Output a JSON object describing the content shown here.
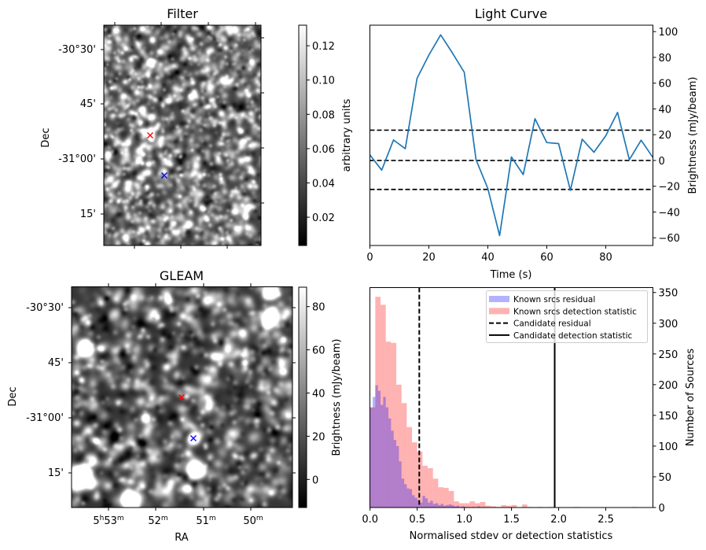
{
  "figure": {
    "panels": {
      "filter": {
        "title": "Filter",
        "ylabel": "Dec",
        "dec_ticks": [
          "-30°30'",
          "45'",
          "-31°00'",
          "15'"
        ],
        "colorbar": {
          "label": "arbitrary units",
          "ticks": [
            "0.02",
            "0.04",
            "0.06",
            "0.08",
            "0.10",
            "0.12"
          ],
          "tick_values": [
            0.02,
            0.04,
            0.06,
            0.08,
            0.1,
            0.12
          ],
          "range": [
            0.0035,
            0.132
          ],
          "colormap": "gray"
        }
      },
      "gleam": {
        "title": "GLEAM",
        "xlabel": "RA",
        "ylabel": "Dec",
        "dec_ticks": [
          "-30°30'",
          "45'",
          "-31°00'",
          "15'"
        ],
        "ra_ticks": [
          {
            "main": "5",
            "sup1": "h",
            "mid": "53",
            "sup2": "m"
          },
          {
            "main": "",
            "sup1": "",
            "mid": "52",
            "sup2": "m"
          },
          {
            "main": "",
            "sup1": "",
            "mid": "51",
            "sup2": "m"
          },
          {
            "main": "",
            "sup1": "",
            "mid": "50",
            "sup2": "m"
          }
        ],
        "colorbar": {
          "label": "Brightness (mJy/beam)",
          "ticks": [
            "0",
            "20",
            "40",
            "60",
            "80"
          ],
          "tick_values": [
            0,
            20,
            40,
            60,
            80
          ],
          "range": [
            -13,
            89
          ],
          "colormap": "gray"
        }
      }
    },
    "markers": {
      "candidate": {
        "symbol": "x",
        "color": "#ff0000"
      },
      "known_source": {
        "symbol": "x",
        "color": "#0000ff"
      }
    }
  },
  "chart_data": [
    {
      "type": "line",
      "title": "Light Curve",
      "xlabel": "Time (s)",
      "ylabel": "Brightness (mJy/beam)",
      "xlim": [
        0,
        96
      ],
      "ylim": [
        -66,
        105
      ],
      "xticks": [
        0,
        20,
        40,
        60,
        80
      ],
      "yticks": [
        -60,
        -40,
        -20,
        0,
        20,
        40,
        60,
        80,
        100
      ],
      "x": [
        0,
        4,
        8,
        12,
        16,
        20,
        24,
        28,
        32,
        36,
        40,
        44,
        48,
        52,
        56,
        60,
        64,
        68,
        72,
        76,
        80,
        84,
        88,
        92,
        96
      ],
      "series": [
        {
          "name": "light curve",
          "color": "#1f77b4",
          "values": [
            4.3,
            -7.5,
            15.9,
            9.2,
            63.8,
            81.8,
            97.5,
            83.4,
            68.5,
            0.6,
            -21.8,
            -58.3,
            2.7,
            -11.0,
            32.4,
            13.9,
            13.1,
            -23.2,
            16.5,
            6.4,
            19.2,
            37.3,
            0.6,
            15.7,
            2.3
          ]
        }
      ],
      "hlines": [
        {
          "y": 23.5,
          "style": "dashed",
          "color": "#000000"
        },
        {
          "y": 0,
          "style": "dashed",
          "color": "#000000"
        },
        {
          "y": -22.5,
          "style": "dashed",
          "color": "#000000"
        }
      ],
      "yaxis_side": "right"
    },
    {
      "type": "bar",
      "subtype": "histogram",
      "xlabel": "Normalised stdev or detection statistics",
      "ylabel": "Number of Sources",
      "xlim": [
        0,
        3.0
      ],
      "ylim": [
        0,
        358
      ],
      "xticks": [
        "0.0",
        "0.5",
        "1.0",
        "1.5",
        "2.0",
        "2.5"
      ],
      "xtick_values": [
        0,
        0.5,
        1.0,
        1.5,
        2.0,
        2.5
      ],
      "yticks": [
        0,
        50,
        100,
        150,
        200,
        250,
        300,
        350
      ],
      "yaxis_side": "right",
      "legend_position": "top-right",
      "series": [
        {
          "name": "Known srcs residual",
          "color": "#0000ff",
          "alpha": 0.3,
          "bin_start": 0.0,
          "bin_width": 0.0278,
          "counts": [
            163,
            180,
            199,
            190,
            167,
            180,
            163,
            145,
            125,
            110,
            100,
            75,
            47,
            38,
            31,
            30,
            20,
            16,
            12,
            8,
            19,
            15,
            8,
            11,
            6,
            7,
            4,
            6,
            3,
            4,
            5,
            4,
            2,
            3,
            1,
            2,
            1,
            1,
            0,
            1,
            0,
            2,
            0,
            1
          ]
        },
        {
          "name": "Known srcs detection statistic",
          "color": "#ff0000",
          "alpha": 0.3,
          "bin_start": 0.0,
          "bin_width": 0.0556,
          "counts": [
            163,
            343,
            330,
            270,
            268,
            200,
            170,
            131,
            106,
            91,
            68,
            64,
            47,
            33,
            32,
            27,
            10,
            7,
            7,
            10,
            7,
            9,
            3,
            2,
            1,
            4,
            3,
            4,
            0,
            5,
            1,
            0,
            1,
            0,
            1,
            0,
            0,
            0,
            0,
            1,
            0,
            0,
            0,
            0,
            0,
            0,
            0,
            0,
            0,
            0,
            1,
            0,
            0
          ]
        }
      ],
      "vlines": [
        {
          "name": "Candidate residual",
          "x": 0.522,
          "style": "dashed",
          "color": "#000000"
        },
        {
          "name": "Candidate detection statistic",
          "x": 1.958,
          "style": "solid",
          "color": "#000000"
        }
      ],
      "legend": [
        {
          "label": "Known srcs residual",
          "kind": "patch",
          "color": "#0000ff"
        },
        {
          "label": "Known srcs detection statistic",
          "kind": "patch",
          "color": "#ff0000"
        },
        {
          "label": "Candidate residual",
          "kind": "dashed-line",
          "color": "#000000"
        },
        {
          "label": "Candidate detection statistic",
          "kind": "solid-line",
          "color": "#000000"
        }
      ]
    }
  ]
}
